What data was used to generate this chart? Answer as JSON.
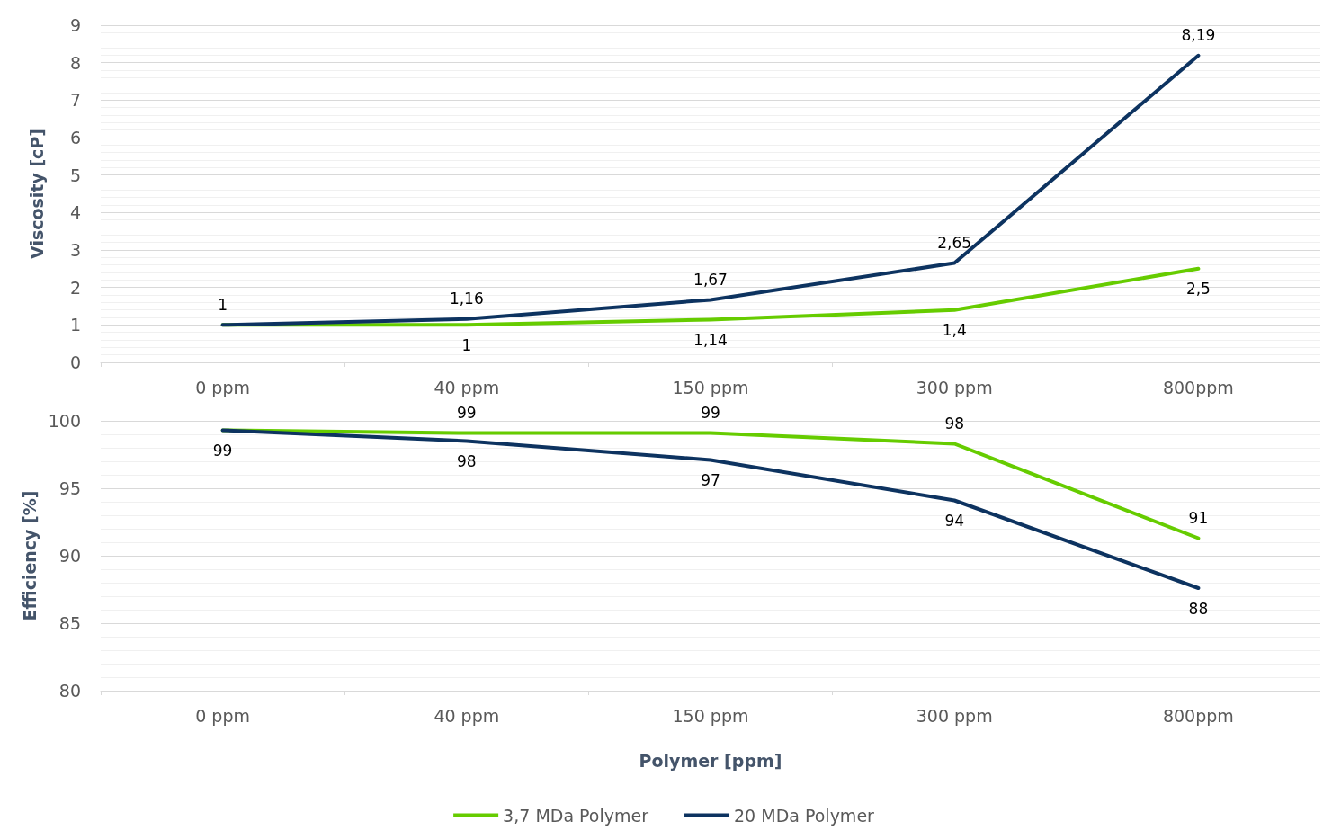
{
  "chart_data": [
    {
      "type": "line",
      "ylabel": "Viscosity [cP]",
      "categories": [
        "0 ppm",
        "40 ppm",
        "150 ppm",
        "300 ppm",
        "800ppm"
      ],
      "ylim": [
        0,
        9
      ],
      "yticks": [
        0,
        1,
        2,
        3,
        4,
        5,
        6,
        7,
        8,
        9
      ],
      "grid": "y",
      "legend": false,
      "marker": "none",
      "series": [
        {
          "color": "#66cc00",
          "values": [
            1,
            1,
            1.14,
            1.4,
            2.5
          ],
          "value_labels": [
            null,
            "1",
            "1,14",
            "1,4",
            "2,5"
          ]
        },
        {
          "color": "#0d3360",
          "values": [
            1,
            1.16,
            1.67,
            2.65,
            8.19
          ],
          "value_labels": [
            "1",
            "1,16",
            "1,67",
            "2,65",
            "8,19"
          ]
        }
      ]
    },
    {
      "type": "line",
      "ylabel": "Efficiency [%]",
      "xlabel": "Polymer [ppm]",
      "categories": [
        "0 ppm",
        "40 ppm",
        "150 ppm",
        "300 ppm",
        "800ppm"
      ],
      "ylim": [
        80,
        100
      ],
      "yticks": [
        80,
        85,
        90,
        95,
        100
      ],
      "grid": "y",
      "legend": "bottom",
      "marker": "none",
      "series": [
        {
          "name": "3,7 MDa Polymer",
          "color": "#66cc00",
          "values": [
            99.3,
            99.1,
            99.1,
            98.3,
            91.3
          ],
          "value_labels": [
            null,
            "99",
            "99",
            "98",
            "91"
          ]
        },
        {
          "name": "20 MDa Polymer",
          "color": "#0d3360",
          "values": [
            99.3,
            98.5,
            97.1,
            94.1,
            87.6
          ],
          "value_labels": [
            "99",
            "98",
            "97",
            "94",
            "88"
          ]
        }
      ]
    }
  ]
}
